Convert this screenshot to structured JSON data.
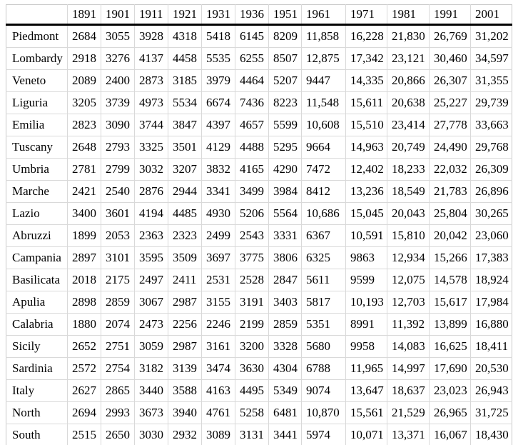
{
  "table": {
    "corner_header": "",
    "columns": [
      "1891",
      "1901",
      "1911",
      "1921",
      "1931",
      "1936",
      "1951",
      "1961",
      "1971",
      "1981",
      "1991",
      "2001"
    ],
    "rows": [
      {
        "label": "Piedmont",
        "values": [
          "2684",
          "3055",
          "3928",
          "4318",
          "5418",
          "6145",
          "8209",
          "11,858",
          "16,228",
          "21,830",
          "26,769",
          "31,202"
        ]
      },
      {
        "label": "Lombardy",
        "values": [
          "2918",
          "3276",
          "4137",
          "4458",
          "5535",
          "6255",
          "8507",
          "12,875",
          "17,342",
          "23,121",
          "30,460",
          "34,597"
        ]
      },
      {
        "label": "Veneto",
        "values": [
          "2089",
          "2400",
          "2873",
          "3185",
          "3979",
          "4464",
          "5207",
          "9447",
          "14,335",
          "20,866",
          "26,307",
          "31,355"
        ]
      },
      {
        "label": "Liguria",
        "values": [
          "3205",
          "3739",
          "4973",
          "5534",
          "6674",
          "7436",
          "8223",
          "11,548",
          "15,611",
          "20,638",
          "25,227",
          "29,739"
        ]
      },
      {
        "label": "Emilia",
        "values": [
          "2823",
          "3090",
          "3744",
          "3847",
          "4397",
          "4657",
          "5599",
          "10,608",
          "15,510",
          "23,414",
          "27,778",
          "33,663"
        ]
      },
      {
        "label": "Tuscany",
        "values": [
          "2648",
          "2793",
          "3325",
          "3501",
          "4129",
          "4488",
          "5295",
          "9664",
          "14,963",
          "20,749",
          "24,490",
          "29,768"
        ]
      },
      {
        "label": "Umbria",
        "values": [
          "2781",
          "2799",
          "3032",
          "3207",
          "3832",
          "4165",
          "4290",
          "7472",
          "12,402",
          "18,233",
          "22,032",
          "26,309"
        ]
      },
      {
        "label": "Marche",
        "values": [
          "2421",
          "2540",
          "2876",
          "2944",
          "3341",
          "3499",
          "3984",
          "8412",
          "13,236",
          "18,549",
          "21,783",
          "26,896"
        ]
      },
      {
        "label": "Lazio",
        "values": [
          "3400",
          "3601",
          "4194",
          "4485",
          "4930",
          "5206",
          "5564",
          "10,686",
          "15,045",
          "20,043",
          "25,804",
          "30,265"
        ]
      },
      {
        "label": "Abruzzi",
        "values": [
          "1899",
          "2053",
          "2363",
          "2323",
          "2499",
          "2543",
          "3331",
          "6367",
          "10,591",
          "15,810",
          "20,042",
          "23,060"
        ]
      },
      {
        "label": "Campania",
        "values": [
          "2897",
          "3101",
          "3595",
          "3509",
          "3697",
          "3775",
          "3806",
          "6325",
          "9863",
          "12,934",
          "15,266",
          "17,383"
        ]
      },
      {
        "label": "Basilicata",
        "values": [
          "2018",
          "2175",
          "2497",
          "2411",
          "2531",
          "2528",
          "2847",
          "5611",
          "9599",
          "12,075",
          "14,578",
          "18,924"
        ]
      },
      {
        "label": "Apulia",
        "values": [
          "2898",
          "2859",
          "3067",
          "2987",
          "3155",
          "3191",
          "3403",
          "5817",
          "10,193",
          "12,703",
          "15,617",
          "17,984"
        ]
      },
      {
        "label": "Calabria",
        "values": [
          "1880",
          "2074",
          "2473",
          "2256",
          "2246",
          "2199",
          "2859",
          "5351",
          "8991",
          "11,392",
          "13,899",
          "16,880"
        ]
      },
      {
        "label": "Sicily",
        "values": [
          "2652",
          "2751",
          "3059",
          "2987",
          "3161",
          "3200",
          "3328",
          "5680",
          "9958",
          "14,083",
          "16,625",
          "18,411"
        ]
      },
      {
        "label": "Sardinia",
        "values": [
          "2572",
          "2754",
          "3182",
          "3139",
          "3474",
          "3630",
          "4304",
          "6788",
          "11,965",
          "14,997",
          "17,690",
          "20,530"
        ]
      },
      {
        "label": "Italy",
        "values": [
          "2627",
          "2865",
          "3440",
          "3588",
          "4163",
          "4495",
          "5349",
          "9074",
          "13,647",
          "18,637",
          "23,023",
          "26,943"
        ]
      },
      {
        "label": "North",
        "values": [
          "2694",
          "2993",
          "3673",
          "3940",
          "4761",
          "5258",
          "6481",
          "10,870",
          "15,561",
          "21,529",
          "26,965",
          "31,725"
        ]
      },
      {
        "label": "South",
        "values": [
          "2515",
          "2650",
          "3030",
          "2932",
          "3089",
          "3131",
          "3441",
          "5974",
          "10,071",
          "13,371",
          "16,067",
          "18,430"
        ]
      }
    ]
  }
}
